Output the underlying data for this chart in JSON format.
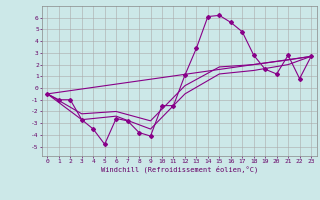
{
  "xlabel": "Windchill (Refroidissement éolien,°C)",
  "bg_color": "#cce8e8",
  "line_color": "#880088",
  "grid_color": "#aaaaaa",
  "xlim": [
    -0.5,
    23.5
  ],
  "ylim": [
    -5.8,
    7.0
  ],
  "xticks": [
    0,
    1,
    2,
    3,
    4,
    5,
    6,
    7,
    8,
    9,
    10,
    11,
    12,
    13,
    14,
    15,
    16,
    17,
    18,
    19,
    20,
    21,
    22,
    23
  ],
  "yticks": [
    -5,
    -4,
    -3,
    -2,
    -1,
    0,
    1,
    2,
    3,
    4,
    5,
    6
  ],
  "curve1_x": [
    0,
    1,
    2,
    3,
    4,
    5,
    6,
    7,
    8,
    9,
    10,
    11,
    12,
    13,
    14,
    15,
    16,
    17,
    18,
    19,
    20,
    21,
    22,
    23
  ],
  "curve1_y": [
    -0.5,
    -1.0,
    -1.0,
    -2.7,
    -3.5,
    -4.8,
    -2.6,
    -2.8,
    -3.8,
    -4.1,
    -1.5,
    -1.5,
    1.1,
    3.4,
    6.1,
    6.2,
    5.6,
    4.8,
    2.8,
    1.6,
    1.2,
    2.8,
    0.8,
    2.7
  ],
  "curve2_x": [
    0,
    23
  ],
  "curve2_y": [
    -0.5,
    2.7
  ],
  "curve3_x": [
    0,
    3,
    6,
    9,
    12,
    15,
    18,
    21,
    23
  ],
  "curve3_y": [
    -0.5,
    -2.7,
    -2.4,
    -3.5,
    -0.5,
    1.2,
    1.5,
    2.0,
    2.7
  ],
  "curve4_x": [
    0,
    3,
    6,
    9,
    12,
    15,
    18,
    21,
    23
  ],
  "curve4_y": [
    -0.5,
    -2.2,
    -2.0,
    -2.8,
    0.2,
    1.8,
    2.0,
    2.4,
    2.7
  ]
}
